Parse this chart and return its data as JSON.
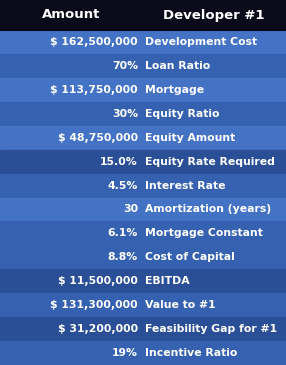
{
  "title_left": "Amount",
  "title_right": "Developer #1",
  "rows": [
    {
      "amount": "$ 162,500,000",
      "label": "Development Cost",
      "shade": "light"
    },
    {
      "amount": "70%",
      "label": "Loan Ratio",
      "shade": "mid"
    },
    {
      "amount": "$ 113,750,000",
      "label": "Mortgage",
      "shade": "light"
    },
    {
      "amount": "30%",
      "label": "Equity Ratio",
      "shade": "mid"
    },
    {
      "amount": "$ 48,750,000",
      "label": "Equity Amount",
      "shade": "light"
    },
    {
      "amount": "15.0%",
      "label": "Equity Rate Required",
      "shade": "dark2"
    },
    {
      "amount": "4.5%",
      "label": "Interest Rate",
      "shade": "mid"
    },
    {
      "amount": "30",
      "label": "Amortization (years)",
      "shade": "light"
    },
    {
      "amount": "6.1%",
      "label": "Mortgage Constant",
      "shade": "mid"
    },
    {
      "amount": "8.8%",
      "label": "Cost of Capital",
      "shade": "mid"
    },
    {
      "amount": "$ 11,500,000",
      "label": "EBITDA",
      "shade": "dark2"
    },
    {
      "amount": "$ 131,300,000",
      "label": "Value to #1",
      "shade": "mid"
    },
    {
      "amount": "$ 31,200,000",
      "label": "Feasibility Gap for #1",
      "shade": "dark2"
    },
    {
      "amount": "19%",
      "label": "Incentive Ratio",
      "shade": "mid"
    }
  ],
  "color_header": "#0a0a1a",
  "color_light": "#4472C4",
  "color_mid": "#3661b0",
  "color_dark2": "#2a4f96",
  "text_color": "#FFFFFF",
  "font_size": 7.8,
  "header_font_size": 9.5,
  "fig_width": 2.86,
  "fig_height": 3.65,
  "dpi": 100
}
